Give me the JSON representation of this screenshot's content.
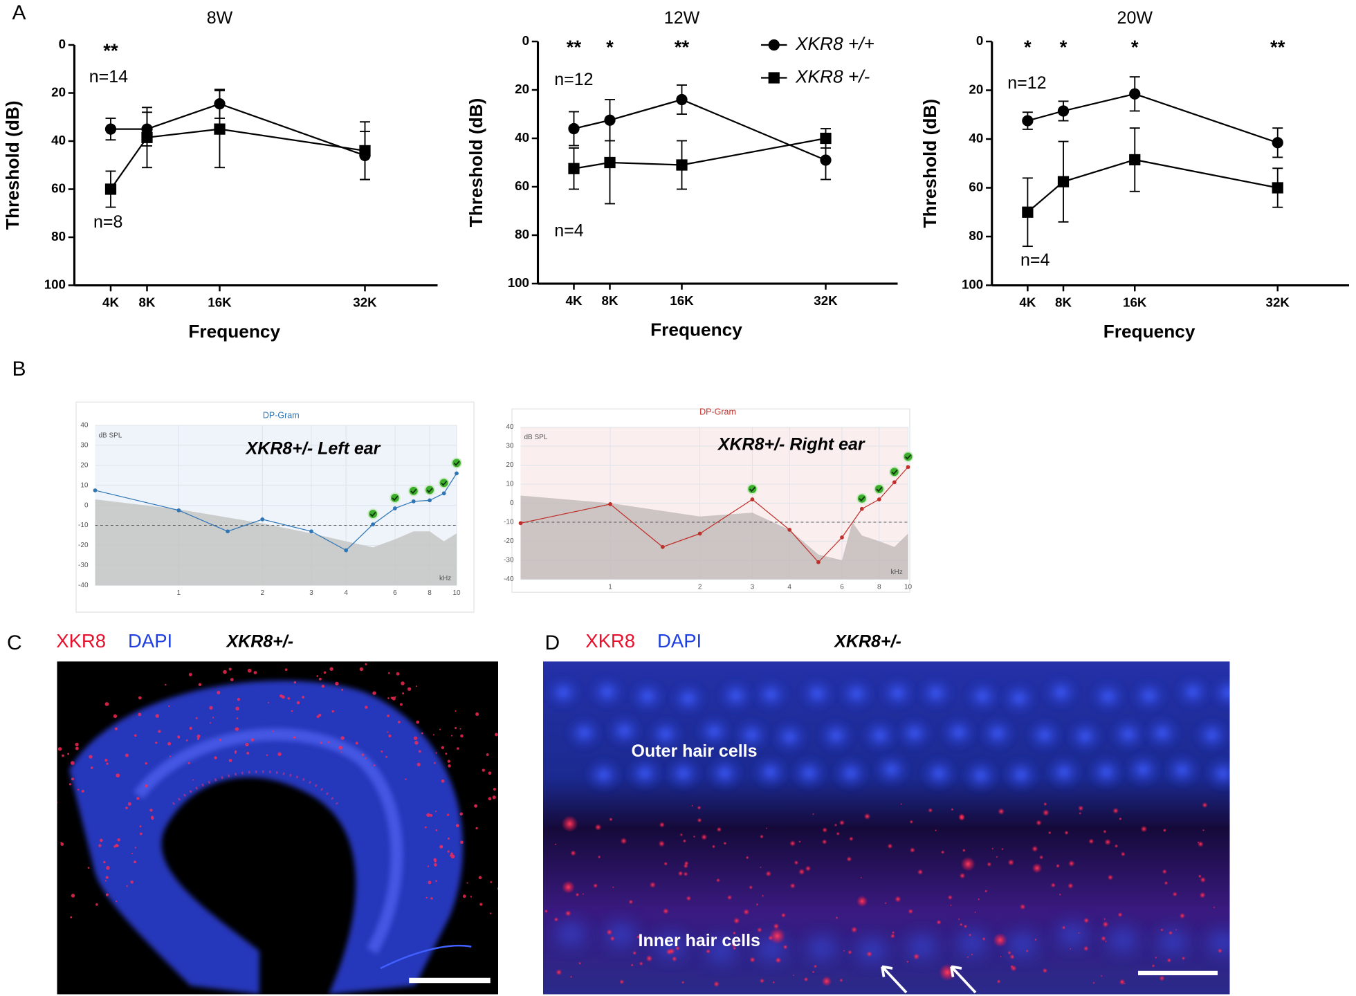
{
  "panel_labels": {
    "a": "A",
    "b": "B",
    "c": "C",
    "d": "D"
  },
  "chart_data": [
    {
      "type": "line",
      "title": "8W",
      "x_label": "Frequency",
      "y_label": "Threshold (dB)",
      "xlim": [
        0,
        40
      ],
      "ylim": [
        0,
        100
      ],
      "y_inverted": true,
      "xticks": [
        {
          "value": 4,
          "label": "4K"
        },
        {
          "value": 8,
          "label": "8K"
        },
        {
          "value": 16,
          "label": "16K"
        },
        {
          "value": 32,
          "label": "32K"
        }
      ],
      "yticks": [
        0,
        20,
        40,
        60,
        80,
        100
      ],
      "x": [
        4,
        8,
        16,
        32
      ],
      "series": [
        {
          "marker": "circle",
          "color": "#000000",
          "values": [
            35,
            35,
            24.5,
            46
          ],
          "errors": [
            4.5,
            7,
            6,
            10
          ]
        },
        {
          "marker": "square",
          "color": "#000000",
          "values": [
            60,
            38.5,
            35,
            44
          ],
          "errors": [
            7.5,
            12.5,
            16,
            12
          ]
        }
      ],
      "significance": [
        {
          "x": 4,
          "label": "**"
        }
      ],
      "n_labels": [
        "n=14",
        "n=8"
      ]
    },
    {
      "type": "line",
      "title": "12W",
      "x_label": "Frequency",
      "y_label": "Threshold (dB)",
      "xlim": [
        0,
        40
      ],
      "ylim": [
        0,
        100
      ],
      "y_inverted": true,
      "xticks": [
        {
          "value": 4,
          "label": "4K"
        },
        {
          "value": 8,
          "label": "8K"
        },
        {
          "value": 16,
          "label": "16K"
        },
        {
          "value": 32,
          "label": "32K"
        }
      ],
      "yticks": [
        0,
        20,
        40,
        60,
        80,
        100
      ],
      "x": [
        4,
        8,
        16,
        32
      ],
      "series": [
        {
          "name": "XKR8 +/+",
          "marker": "circle",
          "color": "#000000",
          "values": [
            36,
            32.5,
            24,
            49
          ],
          "errors": [
            7,
            8.5,
            6,
            8
          ]
        },
        {
          "name": "XKR8 +/-",
          "marker": "square",
          "color": "#000000",
          "values": [
            52.5,
            50,
            51,
            40
          ],
          "errors": [
            8.5,
            17,
            10,
            4
          ]
        }
      ],
      "significance": [
        {
          "x": 4,
          "label": "**"
        },
        {
          "x": 8,
          "label": "*"
        },
        {
          "x": 16,
          "label": "**"
        }
      ],
      "n_labels": [
        "n=12",
        "n=4"
      ]
    },
    {
      "type": "line",
      "title": "20W",
      "x_label": "Frequency",
      "y_label": "Threshold (dB)",
      "xlim": [
        0,
        40
      ],
      "ylim": [
        0,
        100
      ],
      "y_inverted": true,
      "xticks": [
        {
          "value": 4,
          "label": "4K"
        },
        {
          "value": 8,
          "label": "8K"
        },
        {
          "value": 16,
          "label": "16K"
        },
        {
          "value": 32,
          "label": "32K"
        }
      ],
      "yticks": [
        0,
        20,
        40,
        60,
        80,
        100
      ],
      "x": [
        4,
        8,
        16,
        32
      ],
      "series": [
        {
          "marker": "circle",
          "color": "#000000",
          "values": [
            32.5,
            28.5,
            21.5,
            41.5
          ],
          "errors": [
            3.5,
            4,
            7,
            6
          ]
        },
        {
          "marker": "square",
          "color": "#000000",
          "values": [
            70,
            57.5,
            48.5,
            60
          ],
          "errors": [
            14,
            16.5,
            13,
            8
          ]
        }
      ],
      "significance": [
        {
          "x": 4,
          "label": "*"
        },
        {
          "x": 8,
          "label": "*"
        },
        {
          "x": 16,
          "label": "*"
        },
        {
          "x": 32,
          "label": "**"
        }
      ],
      "n_labels": [
        "n=12",
        "n=4"
      ]
    },
    {
      "type": "dpgram",
      "title": "DP-Gram",
      "y_unit": "dB SPL",
      "x_unit": "kHz",
      "label": "XKR8+/- Left ear",
      "background": "#eef4f9",
      "x_log": true,
      "xlim": [
        0.5,
        10
      ],
      "ylim": [
        -40,
        40
      ],
      "xticks": [
        1,
        2,
        3,
        4,
        6,
        8,
        10
      ],
      "yticks": [
        -40,
        -30,
        -20,
        -10,
        0,
        10,
        20,
        30,
        40
      ],
      "reference_line": -10,
      "x": [
        0.5,
        1,
        1.5,
        2,
        3,
        4,
        5,
        6,
        7,
        8,
        9,
        10
      ],
      "series": [
        {
          "color": "#2e75b6",
          "values": [
            7.5,
            -2.5,
            -13,
            -7,
            -13,
            -22.5,
            -9.5,
            -1.5,
            2,
            2.5,
            6,
            16
          ],
          "checked": [
            false,
            false,
            false,
            false,
            false,
            false,
            true,
            true,
            true,
            true,
            true,
            true
          ]
        }
      ],
      "noise": {
        "color": "#c4c4c4",
        "x": [
          0.5,
          1,
          2,
          3,
          4,
          5,
          6,
          7,
          8,
          9,
          10
        ],
        "values": [
          3,
          -2,
          -9,
          -14,
          -18,
          -21,
          -17,
          -13,
          -13,
          -18,
          -14
        ]
      }
    },
    {
      "type": "dpgram",
      "title": "DP-Gram",
      "y_unit": "dB SPL",
      "x_unit": "kHz",
      "label": "XKR8+/- Right ear",
      "background": "#faeeee",
      "x_log": true,
      "xlim": [
        0.5,
        10
      ],
      "ylim": [
        -40,
        40
      ],
      "xticks": [
        1,
        2,
        3,
        4,
        6,
        8,
        10
      ],
      "yticks": [
        -40,
        -30,
        -20,
        -10,
        0,
        10,
        20,
        30,
        40
      ],
      "reference_line": -10,
      "x": [
        0.5,
        1,
        1.5,
        2,
        3,
        4,
        5,
        6,
        7,
        8,
        9,
        10
      ],
      "series": [
        {
          "color": "#c0302b",
          "values": [
            -10.5,
            -0.5,
            -23,
            -16,
            2,
            -14,
            -31,
            -18,
            -3,
            2,
            11,
            19
          ],
          "checked": [
            false,
            false,
            false,
            false,
            true,
            false,
            false,
            false,
            true,
            true,
            true,
            true
          ]
        }
      ],
      "noise": {
        "color": "#c4bcbc",
        "x": [
          0.5,
          1,
          2,
          3,
          4,
          5,
          6,
          6.5,
          7,
          8,
          9,
          10
        ],
        "values": [
          4,
          0,
          -7,
          -5,
          -14,
          -27,
          -30,
          -10,
          -17,
          -20,
          -23,
          -16
        ]
      }
    }
  ],
  "images": [
    {
      "labels": [
        "XKR8",
        "DAPI",
        "XKR8+/-"
      ]
    },
    {
      "labels": [
        "XKR8",
        "DAPI",
        "XKR8+/-"
      ],
      "annotations": [
        "Outer hair cells",
        "Inner hair cells"
      ]
    }
  ]
}
